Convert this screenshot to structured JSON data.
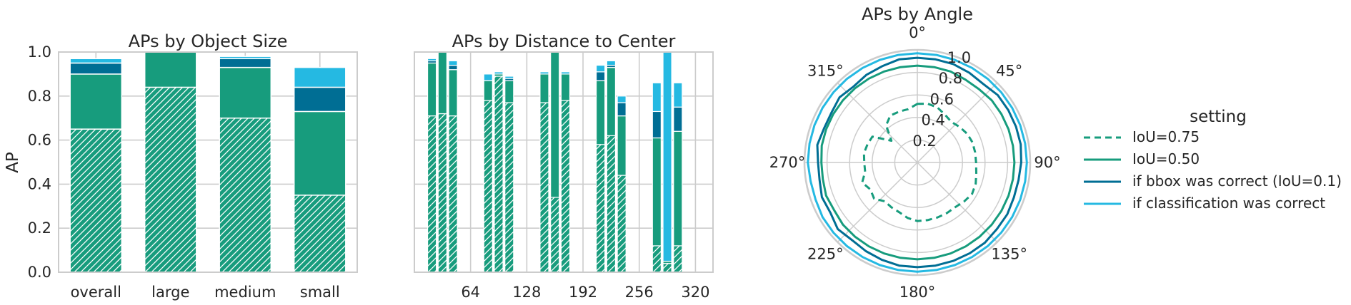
{
  "colors": {
    "hatched": "#179c7d",
    "iou50": "#179c7d",
    "bbox": "#006e94",
    "cls": "#25b9e2",
    "grid": "#cccccc",
    "frame": "#cccccc"
  },
  "legend": {
    "title": "setting",
    "entries": [
      {
        "label": "IoU=0.75",
        "color": "#179c7d",
        "dashed": true
      },
      {
        "label": "IoU=0.50",
        "color": "#179c7d",
        "dashed": false
      },
      {
        "label": "if bbox was correct (IoU=0.1)",
        "color": "#006e94",
        "dashed": false
      },
      {
        "label": "if classification was correct",
        "color": "#25b9e2",
        "dashed": false
      }
    ]
  },
  "chart_data": [
    {
      "type": "bar",
      "title": "APs by Object Size",
      "ylabel": "AP",
      "ylim": [
        0,
        1
      ],
      "yticks": [
        "0.0",
        "0.2",
        "0.4",
        "0.6",
        "0.8",
        "1.0"
      ],
      "categories": [
        "overall",
        "large",
        "medium",
        "small"
      ],
      "stacked_levels": {
        "IoU=0.75": [
          0.65,
          0.84,
          0.7,
          0.35
        ],
        "IoU=0.50": [
          0.9,
          1.0,
          0.93,
          0.73
        ],
        "if bbox was correct (IoU=0.1)": [
          0.95,
          1.0,
          0.97,
          0.84
        ],
        "if classification was correct": [
          0.97,
          1.0,
          0.98,
          0.93
        ]
      }
    },
    {
      "type": "bar",
      "title": "APs by Distance to Center",
      "ylim": [
        0,
        1
      ],
      "xticks": [
        "64",
        "128",
        "192",
        "256",
        "320"
      ],
      "bars": [
        {
          "x": 20,
          "levels": [
            0.71,
            0.95,
            0.96,
            0.97
          ]
        },
        {
          "x": 32,
          "levels": [
            0.72,
            1.0,
            1.0,
            1.0
          ]
        },
        {
          "x": 44,
          "levels": [
            0.71,
            0.92,
            0.94,
            0.96
          ]
        },
        {
          "x": 84,
          "levels": [
            0.78,
            0.87,
            0.87,
            0.9
          ]
        },
        {
          "x": 96,
          "levels": [
            0.89,
            0.9,
            0.9,
            0.91
          ]
        },
        {
          "x": 108,
          "levels": [
            0.77,
            0.87,
            0.88,
            0.89
          ]
        },
        {
          "x": 148,
          "levels": [
            0.77,
            0.9,
            0.9,
            0.91
          ]
        },
        {
          "x": 160,
          "levels": [
            0.34,
            1.0,
            1.0,
            1.0
          ]
        },
        {
          "x": 172,
          "levels": [
            0.78,
            0.9,
            0.9,
            0.91
          ]
        },
        {
          "x": 212,
          "levels": [
            0.58,
            0.87,
            0.91,
            0.94
          ]
        },
        {
          "x": 224,
          "levels": [
            0.62,
            0.93,
            0.94,
            0.96
          ]
        },
        {
          "x": 236,
          "levels": [
            0.44,
            0.71,
            0.77,
            0.8
          ]
        },
        {
          "x": 276,
          "levels": [
            0.12,
            0.61,
            0.73,
            0.86
          ]
        },
        {
          "x": 288,
          "levels": [
            0.04,
            0.05,
            0.05,
            1.0
          ]
        },
        {
          "x": 300,
          "levels": [
            0.12,
            0.64,
            0.75,
            0.86
          ]
        }
      ]
    },
    {
      "type": "polar",
      "title": "APs by Angle",
      "rlim": [
        0,
        1
      ],
      "rticks": [
        "0.2",
        "0.4",
        "0.6",
        "0.8",
        "1.0"
      ],
      "angle_labels": [
        "0°",
        "45°",
        "90°",
        "135°",
        "180°",
        "225°",
        "270°",
        "315°"
      ],
      "angles_deg": [
        0,
        10,
        20,
        30,
        40,
        50,
        60,
        70,
        80,
        90,
        100,
        110,
        120,
        130,
        140,
        150,
        160,
        170,
        180,
        190,
        200,
        210,
        220,
        230,
        240,
        250,
        260,
        270,
        280,
        290,
        300,
        310,
        320,
        330,
        340,
        350
      ],
      "series": [
        {
          "name": "IoU=0.75",
          "values": [
            0.52,
            0.53,
            0.52,
            0.49,
            0.47,
            0.49,
            0.51,
            0.52,
            0.52,
            0.52,
            0.53,
            0.55,
            0.56,
            0.54,
            0.52,
            0.52,
            0.52,
            0.52,
            0.52,
            0.5,
            0.47,
            0.46,
            0.45,
            0.5,
            0.48,
            0.52,
            0.47,
            0.47,
            0.48,
            0.47,
            0.46,
            0.3,
            0.43,
            0.48,
            0.48,
            0.48
          ]
        },
        {
          "name": "IoU=0.50",
          "values": [
            0.86,
            0.86,
            0.86,
            0.85,
            0.85,
            0.86,
            0.86,
            0.86,
            0.86,
            0.86,
            0.86,
            0.86,
            0.86,
            0.86,
            0.86,
            0.86,
            0.86,
            0.86,
            0.86,
            0.86,
            0.86,
            0.86,
            0.86,
            0.86,
            0.85,
            0.86,
            0.85,
            0.85,
            0.86,
            0.86,
            0.86,
            0.86,
            0.86,
            0.86,
            0.86,
            0.86
          ]
        },
        {
          "name": "if bbox was correct (IoU=0.1)",
          "values": [
            0.93,
            0.93,
            0.93,
            0.92,
            0.91,
            0.93,
            0.93,
            0.93,
            0.93,
            0.92,
            0.91,
            0.91,
            0.92,
            0.92,
            0.93,
            0.93,
            0.93,
            0.93,
            0.93,
            0.93,
            0.92,
            0.91,
            0.9,
            0.92,
            0.89,
            0.9,
            0.88,
            0.88,
            0.9,
            0.88,
            0.88,
            0.9,
            0.88,
            0.9,
            0.91,
            0.93
          ]
        },
        {
          "name": "if classification was correct",
          "values": [
            0.97,
            0.97,
            0.97,
            0.97,
            0.97,
            0.97,
            0.97,
            0.97,
            0.97,
            0.97,
            0.97,
            0.97,
            0.97,
            0.97,
            0.97,
            0.97,
            0.97,
            0.97,
            0.97,
            0.97,
            0.97,
            0.97,
            0.97,
            0.97,
            0.97,
            0.96,
            0.96,
            0.97,
            0.97,
            0.97,
            0.97,
            0.97,
            0.97,
            0.97,
            0.97,
            0.97
          ]
        }
      ]
    }
  ]
}
